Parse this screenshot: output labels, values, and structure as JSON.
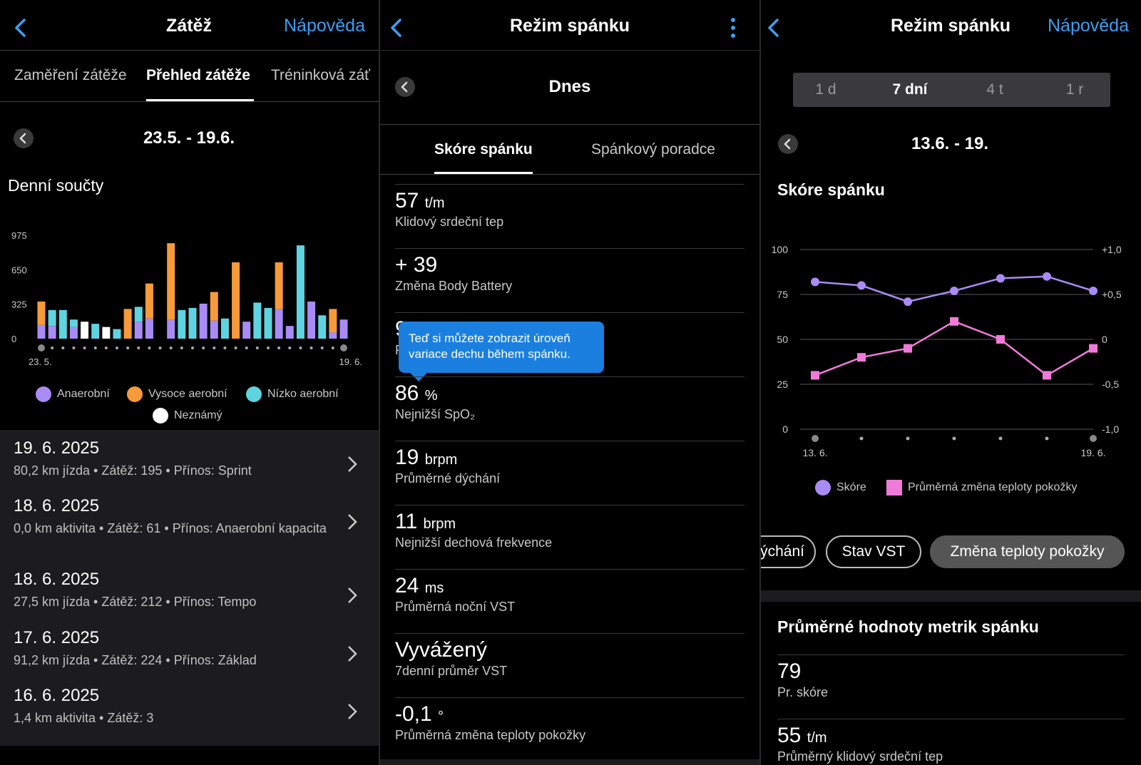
{
  "panel1": {
    "title": "Zátěž",
    "help": "Nápověda",
    "tabs": [
      "Zaměření zátěže",
      "Přehled zátěže",
      "Tréninková záť"
    ],
    "range": "23.5. - 19.6.",
    "section_title": "Denní součty",
    "legend": [
      {
        "label": "Anaerobní",
        "color": "#a98bf5"
      },
      {
        "label": "Vysoce aerobní",
        "color": "#f79a3a"
      },
      {
        "label": "Nízko aerobní",
        "color": "#5ed4e0"
      },
      {
        "label": "Neznámý",
        "color": "#ffffff"
      }
    ],
    "activities": [
      {
        "date": "19. 6. 2025",
        "meta": "80,2 km jízda  •  Zátěž: 195  •  Přínos: Sprint"
      },
      {
        "date": "18. 6. 2025",
        "meta": "0,0 km aktivita  •  Zátěž: 61  •  Přínos: Anaerobní kapacita"
      },
      {
        "date": "18. 6. 2025",
        "meta": "27,5 km jízda  •  Zátěž: 212  •  Přínos: Tempo"
      },
      {
        "date": "17. 6. 2025",
        "meta": "91,2 km jízda  •  Zátěž: 224  •  Přínos: Základ"
      },
      {
        "date": "16. 6. 2025",
        "meta": "1,4 km aktivita  •  Zátěž: 3"
      }
    ]
  },
  "load_chart": {
    "chart_data": {
      "type": "bar",
      "stacked": true,
      "x_start_label": "23. 5.",
      "x_end_label": "19. 6.",
      "y_ticks": [
        0,
        325,
        650,
        975
      ],
      "ylim": [
        0,
        975
      ],
      "series_order": [
        "Anaerobní",
        "Vysoce aerobní",
        "Nízko aerobní",
        "Neznámý"
      ],
      "days": [
        [
          130,
          220,
          0,
          0
        ],
        [
          120,
          0,
          150,
          0
        ],
        [
          0,
          0,
          270,
          0
        ],
        [
          110,
          0,
          70,
          0
        ],
        [
          0,
          0,
          0,
          160
        ],
        [
          0,
          0,
          140,
          0
        ],
        [
          0,
          0,
          0,
          110
        ],
        [
          0,
          0,
          90,
          0
        ],
        [
          0,
          280,
          0,
          0
        ],
        [
          160,
          0,
          140,
          0
        ],
        [
          190,
          330,
          0,
          0
        ],
        [
          0,
          0,
          0,
          0
        ],
        [
          180,
          720,
          0,
          0
        ],
        [
          0,
          0,
          270,
          0
        ],
        [
          0,
          0,
          290,
          0
        ],
        [
          330,
          0,
          0,
          0
        ],
        [
          170,
          270,
          0,
          0
        ],
        [
          0,
          0,
          190,
          0
        ],
        [
          0,
          720,
          0,
          0
        ],
        [
          160,
          0,
          0,
          0
        ],
        [
          0,
          0,
          340,
          0
        ],
        [
          0,
          0,
          290,
          0
        ],
        [
          280,
          440,
          0,
          0
        ],
        [
          120,
          0,
          0,
          0
        ],
        [
          0,
          0,
          880,
          0
        ],
        [
          350,
          0,
          0,
          0
        ],
        [
          0,
          0,
          220,
          0
        ],
        [
          60,
          220,
          0,
          0
        ],
        [
          180,
          0,
          0,
          0
        ]
      ]
    }
  },
  "panel2": {
    "title": "Režim spánku",
    "day": "Dnes",
    "tabs": [
      "Skóre spánku",
      "Spánkový poradce"
    ],
    "tooltip": "Teď si můžete zobrazit úroveň variace dechu během spánku.",
    "metrics": [
      {
        "value": "57",
        "unit": "t/m",
        "label": "Klidový srdeční tep"
      },
      {
        "value": "+ 39",
        "unit": "",
        "label": "Změna Body Battery"
      },
      {
        "value": "9",
        "unit": "",
        "label": "P"
      },
      {
        "value": "86",
        "unit": "%",
        "label": "Nejnižší SpO₂"
      },
      {
        "value": "19",
        "unit": "brpm",
        "label": "Průměrné dýchání"
      },
      {
        "value": "11",
        "unit": "brpm",
        "label": "Nejnižší dechová frekvence"
      },
      {
        "value": "24",
        "unit": "ms",
        "label": "Průměrná noční VST"
      },
      {
        "value": "Vyvážený",
        "unit": "",
        "label": "7denní průměr VST"
      },
      {
        "value": "-0,1",
        "unit": "°",
        "label": "Průměrná změna teploty pokožky"
      }
    ]
  },
  "panel3": {
    "title": "Režim spánku",
    "help": "Nápověda",
    "periods": [
      "1 d",
      "7 dní",
      "4 t",
      "1 r"
    ],
    "active_period": 1,
    "range": "13.6. - 19.",
    "section_title": "Skóre spánku",
    "legend": [
      {
        "label": "Skóre",
        "color": "#a98bf5"
      },
      {
        "label": "Průměrná změna teploty pokožky",
        "color": "#f07ad9"
      }
    ],
    "pills": [
      "ýchání",
      "Stav VST",
      "Změna teploty pokožky"
    ],
    "avg_title": "Průměrné hodnoty metrik spánku",
    "avg_metrics": [
      {
        "value": "79",
        "unit": "",
        "label": "Pr. skóre"
      },
      {
        "value": "55",
        "unit": "t/m",
        "label": "Průměrný klidový srdeční tep"
      }
    ]
  },
  "sleep_chart": {
    "chart_data": {
      "type": "line",
      "x_start_label": "13. 6.",
      "x_end_label": "19. 6.",
      "y_left_ticks": [
        "0",
        "25",
        "50",
        "75",
        "100"
      ],
      "y_right_ticks": [
        "-1,0",
        "-0,5",
        "0",
        "+0,5",
        "+1,0"
      ],
      "ylim_left": [
        0,
        100
      ],
      "ylim_right": [
        -1.0,
        1.0
      ],
      "series": [
        {
          "name": "Skóre",
          "axis": "left",
          "values": [
            82,
            80,
            71,
            77,
            84,
            85,
            77
          ]
        },
        {
          "name": "Průměrná změna teploty pokožky",
          "axis": "right",
          "values": [
            -0.4,
            -0.2,
            -0.1,
            0.2,
            0.0,
            -0.4,
            -0.1
          ]
        }
      ]
    }
  }
}
